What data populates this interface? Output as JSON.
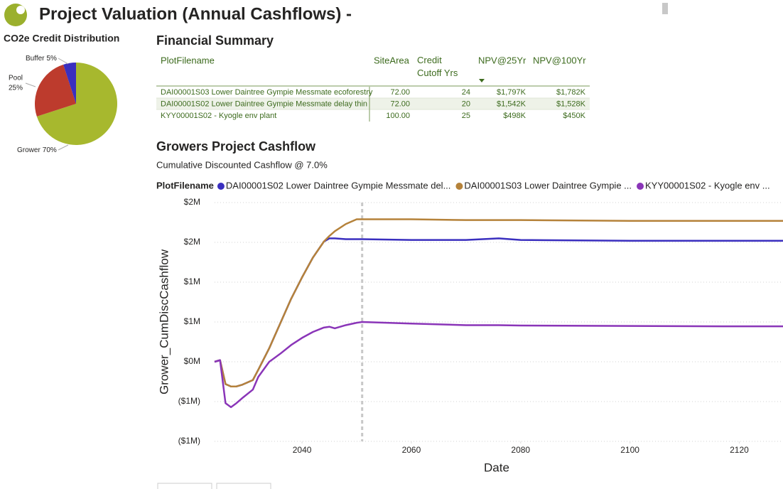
{
  "header": {
    "title": "Project Valuation (Annual Cashflows) -"
  },
  "table": {
    "title": "Financial Summary",
    "columns": [
      "PlotFilename",
      "SiteArea",
      "Credit Cutoff Yrs",
      "NPV@25Yr",
      "NPV@100Yr"
    ],
    "rows": [
      [
        "DAI00001S03 Lower Daintree Gympie Messmate ecoforestry",
        "72.00",
        "24",
        "$1,797K",
        "$1,782K"
      ],
      [
        "DAI00001S02 Lower Daintree Gympie Messmate delay thin",
        "72.00",
        "20",
        "$1,542K",
        "$1,528K"
      ],
      [
        "KYY00001S02 - Kyogle env plant",
        "100.00",
        "25",
        "$498K",
        "$450K"
      ]
    ]
  },
  "chart_data": [
    {
      "type": "pie",
      "title": "CO2e Credit Distribution",
      "categories": [
        "Grower",
        "Pool",
        "Buffer"
      ],
      "values": [
        70,
        25,
        5
      ],
      "value_labels": [
        "70%",
        "25%",
        "5%"
      ],
      "colors": [
        "#a7b82e",
        "#bd3b2d",
        "#3a2fbf"
      ]
    },
    {
      "type": "line",
      "title": "Growers Project Cashflow",
      "subtitle": "Cumulative Discounted Cashflow @ 7.0%",
      "legend_title": "PlotFilename",
      "x_label": "Date",
      "y_label": "Grower_CumDiscCashflow",
      "x": [
        2024,
        2025,
        2026,
        2027,
        2028,
        2029,
        2031,
        2032,
        2034,
        2036,
        2038,
        2040,
        2042,
        2044,
        2045,
        2046,
        2048,
        2050,
        2051,
        2060,
        2070,
        2076,
        2080,
        2100,
        2120,
        2128
      ],
      "series": [
        {
          "name": "DAI00001S02 Lower Daintree Gympie Messmate del...",
          "color": "#3a2fbf",
          "values": [
            0,
            20000,
            -280000,
            -310000,
            -310000,
            -290000,
            -230000,
            -100000,
            170000,
            480000,
            790000,
            1060000,
            1310000,
            1510000,
            1550000,
            1550000,
            1540000,
            1540000,
            1540000,
            1530000,
            1530000,
            1550000,
            1530000,
            1520000,
            1520000,
            1520000
          ]
        },
        {
          "name": "DAI00001S03 Lower Daintree Gympie ...",
          "color": "#b5823a",
          "values": [
            0,
            20000,
            -280000,
            -310000,
            -310000,
            -290000,
            -230000,
            -100000,
            170000,
            480000,
            790000,
            1060000,
            1310000,
            1510000,
            1580000,
            1640000,
            1730000,
            1790000,
            1790000,
            1790000,
            1780000,
            1780000,
            1780000,
            1770000,
            1770000,
            1770000
          ]
        },
        {
          "name": "KYY00001S02 - Kyogle env ...",
          "color": "#8a35b8",
          "values": [
            0,
            20000,
            -520000,
            -570000,
            -520000,
            -460000,
            -350000,
            -190000,
            0,
            100000,
            210000,
            300000,
            375000,
            430000,
            440000,
            420000,
            460000,
            490000,
            500000,
            480000,
            460000,
            460000,
            455000,
            450000,
            445000,
            445000
          ]
        }
      ],
      "xlim": [
        2024,
        2128
      ],
      "xticks": [
        2040,
        2060,
        2080,
        2100,
        2120
      ],
      "ylim": [
        -1000000,
        2000000
      ],
      "yticks": [
        {
          "value": 2000000,
          "label": "$2M"
        },
        {
          "value": 1500000,
          "label": "$2M"
        },
        {
          "value": 1000000,
          "label": "$1M"
        },
        {
          "value": 500000,
          "label": "$1M"
        },
        {
          "value": 0,
          "label": "$0M"
        },
        {
          "value": -500000,
          "label": "($1M)"
        },
        {
          "value": -1000000,
          "label": "($1M)"
        }
      ],
      "reference_line_x": 2051,
      "grid": true
    }
  ]
}
